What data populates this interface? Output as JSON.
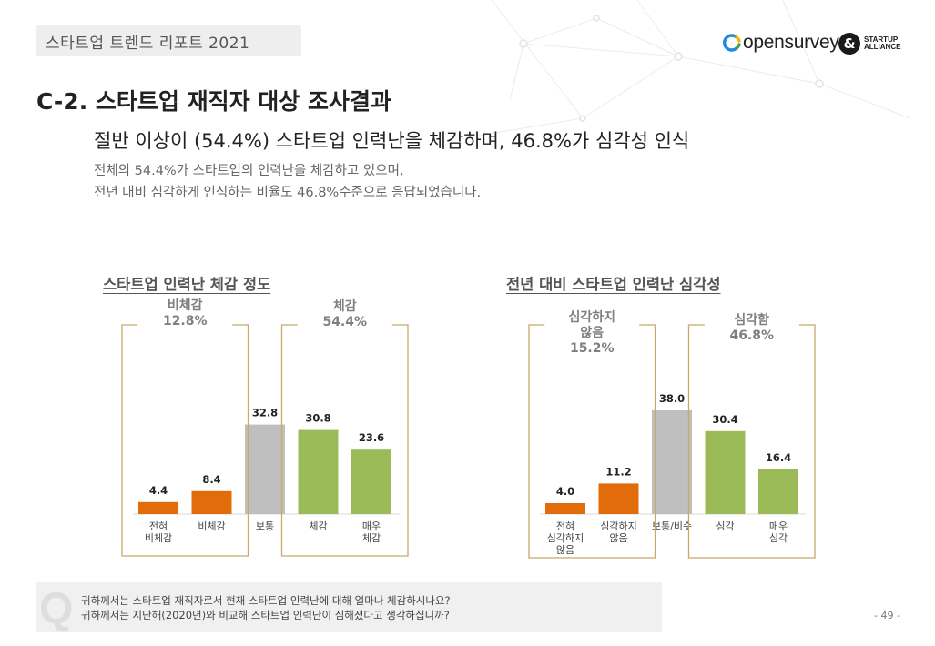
{
  "header": {
    "report_tag": "스타트업 트렌드 리포트 2021",
    "logo_opensurvey": "opensurvey",
    "logo_alliance_line1": "STARTUP",
    "logo_alliance_line2": "ALLIANCE"
  },
  "section_title": "C-2. 스타트업 재직자 대상 조사결과",
  "headline": "절반 이상이 (54.4%) 스타트업 인력난을 체감하며, 46.8%가 심각성 인식",
  "description": {
    "line1": "전체의 54.4%가 스타트업의 인력난을 체감하고 있으며,",
    "line2": "전년 대비 심각하게 인식하는 비율도 46.8%수준으로 응답되었습니다."
  },
  "colors": {
    "orange": "#E36C0A",
    "gray": "#BFBFBF",
    "green": "#9BBB59",
    "bracket": "#C8A96A",
    "bracket_label": "#7F7F7F"
  },
  "chart_data": [
    {
      "type": "bar",
      "title": "스타트업 인력난 체감 정도",
      "categories": [
        "전혀\n비체감",
        "비체감",
        "보통",
        "체감",
        "매우\n체감"
      ],
      "values": [
        4.4,
        8.4,
        32.8,
        30.8,
        23.6
      ],
      "bar_colors": [
        "orange",
        "orange",
        "gray",
        "green",
        "green"
      ],
      "groups": [
        {
          "label": "비체감\n12.8%",
          "from": 0,
          "to": 1
        },
        {
          "label": "체감\n54.4%",
          "from": 3,
          "to": 4
        }
      ]
    },
    {
      "type": "bar",
      "title": "전년 대비 스타트업 인력난 심각성",
      "categories": [
        "전혀\n심각하지\n않음",
        "심각하지\n않음",
        "보통/비슷",
        "심각",
        "매우\n심각"
      ],
      "values": [
        4.0,
        11.2,
        38.0,
        30.4,
        16.4
      ],
      "bar_colors": [
        "orange",
        "orange",
        "gray",
        "green",
        "green"
      ],
      "groups": [
        {
          "label": "심각하지\n않음\n15.2%",
          "from": 0,
          "to": 1
        },
        {
          "label": "심각함\n46.8%",
          "from": 3,
          "to": 4
        }
      ]
    }
  ],
  "question": {
    "letter": "Q",
    "line1": "귀하께서는 스타트업 재직자로서 현재 스타트업 인력난에 대해 얼마나 체감하시나요?",
    "line2": "귀하께서는 지난해(2020년)와 비교해 스타트업 인력난이 심해졌다고 생각하십니까?"
  },
  "page_number": "- 49 -"
}
